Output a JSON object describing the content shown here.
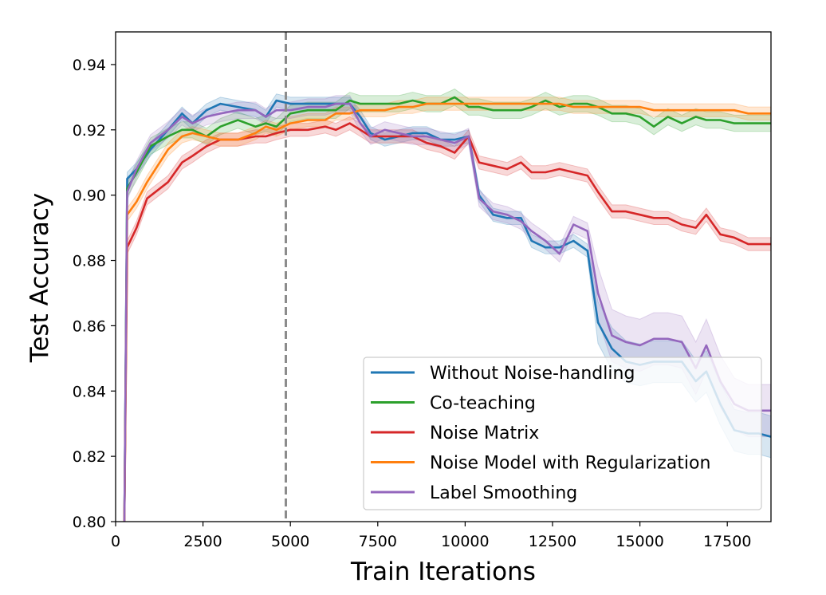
{
  "chart_data": {
    "type": "line",
    "title": "",
    "xlabel": "Train Iterations",
    "ylabel": "Test Accuracy",
    "xlim": [
      0,
      18750
    ],
    "ylim": [
      0.8,
      0.95
    ],
    "x_ticks": [
      0,
      2500,
      5000,
      7500,
      10000,
      12500,
      15000,
      17500
    ],
    "x_tick_labels": [
      "0",
      "2500",
      "5000",
      "7500",
      "10000",
      "12500",
      "15000",
      "17500"
    ],
    "y_ticks": [
      0.8,
      0.82,
      0.84,
      0.86,
      0.88,
      0.9,
      0.92,
      0.94
    ],
    "y_tick_labels": [
      "0.80",
      "0.82",
      "0.84",
      "0.86",
      "0.88",
      "0.90",
      "0.92",
      "0.94"
    ],
    "vline": {
      "x": 4870,
      "style": "dashed",
      "color": "#8c8c8c"
    },
    "grid": false,
    "legend_position": "lower-right",
    "shaded_band": true,
    "series": [
      {
        "name": "Without Noise-handling",
        "color": "#1f77b4",
        "band": 0.002,
        "points": [
          [
            250,
            0.8
          ],
          [
            330,
            0.905
          ],
          [
            600,
            0.908
          ],
          [
            1000,
            0.914
          ],
          [
            1500,
            0.92
          ],
          [
            1900,
            0.925
          ],
          [
            2200,
            0.922
          ],
          [
            2600,
            0.926
          ],
          [
            3000,
            0.928
          ],
          [
            3500,
            0.927
          ],
          [
            4000,
            0.926
          ],
          [
            4300,
            0.924
          ],
          [
            4600,
            0.929
          ],
          [
            5000,
            0.928
          ],
          [
            5500,
            0.928
          ],
          [
            6000,
            0.928
          ],
          [
            6300,
            0.928
          ],
          [
            6700,
            0.928
          ],
          [
            7000,
            0.924
          ],
          [
            7300,
            0.919
          ],
          [
            7700,
            0.917
          ],
          [
            8100,
            0.918
          ],
          [
            8500,
            0.919
          ],
          [
            8900,
            0.919
          ],
          [
            9300,
            0.917
          ],
          [
            9700,
            0.917
          ],
          [
            10100,
            0.918
          ],
          [
            10400,
            0.9
          ],
          [
            10800,
            0.894
          ],
          [
            11200,
            0.893
          ],
          [
            11600,
            0.893
          ],
          [
            11900,
            0.886
          ],
          [
            12300,
            0.884
          ],
          [
            12700,
            0.884
          ],
          [
            13100,
            0.886
          ],
          [
            13500,
            0.883
          ],
          [
            13800,
            0.861
          ],
          [
            14200,
            0.853
          ],
          [
            14600,
            0.849
          ],
          [
            15000,
            0.848
          ],
          [
            15400,
            0.849
          ],
          [
            15800,
            0.849
          ],
          [
            16200,
            0.849
          ],
          [
            16600,
            0.843
          ],
          [
            16900,
            0.846
          ],
          [
            17300,
            0.836
          ],
          [
            17700,
            0.828
          ],
          [
            18100,
            0.827
          ],
          [
            18400,
            0.827
          ],
          [
            18750,
            0.826
          ]
        ]
      },
      {
        "name": "Co-teaching",
        "color": "#2ca02c",
        "band": 0.0025,
        "points": [
          [
            250,
            0.8
          ],
          [
            330,
            0.902
          ],
          [
            600,
            0.907
          ],
          [
            1000,
            0.915
          ],
          [
            1500,
            0.918
          ],
          [
            1900,
            0.92
          ],
          [
            2200,
            0.92
          ],
          [
            2600,
            0.918
          ],
          [
            3000,
            0.921
          ],
          [
            3500,
            0.923
          ],
          [
            4000,
            0.921
          ],
          [
            4300,
            0.922
          ],
          [
            4600,
            0.921
          ],
          [
            5000,
            0.925
          ],
          [
            5500,
            0.926
          ],
          [
            6000,
            0.926
          ],
          [
            6300,
            0.926
          ],
          [
            6700,
            0.929
          ],
          [
            7000,
            0.928
          ],
          [
            7300,
            0.928
          ],
          [
            7700,
            0.928
          ],
          [
            8100,
            0.928
          ],
          [
            8500,
            0.929
          ],
          [
            8900,
            0.928
          ],
          [
            9300,
            0.928
          ],
          [
            9700,
            0.93
          ],
          [
            10100,
            0.927
          ],
          [
            10400,
            0.927
          ],
          [
            10800,
            0.926
          ],
          [
            11200,
            0.926
          ],
          [
            11600,
            0.926
          ],
          [
            11900,
            0.927
          ],
          [
            12300,
            0.929
          ],
          [
            12700,
            0.927
          ],
          [
            13100,
            0.928
          ],
          [
            13500,
            0.928
          ],
          [
            13800,
            0.927
          ],
          [
            14200,
            0.925
          ],
          [
            14600,
            0.925
          ],
          [
            15000,
            0.924
          ],
          [
            15400,
            0.921
          ],
          [
            15800,
            0.924
          ],
          [
            16200,
            0.922
          ],
          [
            16600,
            0.924
          ],
          [
            16900,
            0.923
          ],
          [
            17300,
            0.923
          ],
          [
            17700,
            0.922
          ],
          [
            18100,
            0.922
          ],
          [
            18400,
            0.922
          ],
          [
            18750,
            0.922
          ]
        ]
      },
      {
        "name": "Noise Matrix",
        "color": "#d62728",
        "band": 0.002,
        "points": [
          [
            250,
            0.8
          ],
          [
            330,
            0.884
          ],
          [
            600,
            0.89
          ],
          [
            900,
            0.899
          ],
          [
            1500,
            0.904
          ],
          [
            1900,
            0.91
          ],
          [
            2200,
            0.912
          ],
          [
            2600,
            0.915
          ],
          [
            3000,
            0.917
          ],
          [
            3500,
            0.917
          ],
          [
            4000,
            0.918
          ],
          [
            4300,
            0.918
          ],
          [
            4600,
            0.919
          ],
          [
            5000,
            0.92
          ],
          [
            5500,
            0.92
          ],
          [
            6000,
            0.921
          ],
          [
            6300,
            0.92
          ],
          [
            6700,
            0.922
          ],
          [
            7000,
            0.92
          ],
          [
            7300,
            0.918
          ],
          [
            7700,
            0.918
          ],
          [
            8100,
            0.918
          ],
          [
            8500,
            0.918
          ],
          [
            8900,
            0.916
          ],
          [
            9300,
            0.915
          ],
          [
            9700,
            0.913
          ],
          [
            10100,
            0.918
          ],
          [
            10400,
            0.91
          ],
          [
            10800,
            0.909
          ],
          [
            11200,
            0.908
          ],
          [
            11600,
            0.91
          ],
          [
            11900,
            0.907
          ],
          [
            12300,
            0.907
          ],
          [
            12700,
            0.908
          ],
          [
            13100,
            0.907
          ],
          [
            13500,
            0.906
          ],
          [
            13800,
            0.901
          ],
          [
            14200,
            0.895
          ],
          [
            14600,
            0.895
          ],
          [
            15000,
            0.894
          ],
          [
            15400,
            0.893
          ],
          [
            15800,
            0.893
          ],
          [
            16200,
            0.891
          ],
          [
            16600,
            0.89
          ],
          [
            16900,
            0.894
          ],
          [
            17300,
            0.888
          ],
          [
            17700,
            0.887
          ],
          [
            18100,
            0.885
          ],
          [
            18400,
            0.885
          ],
          [
            18750,
            0.885
          ]
        ]
      },
      {
        "name": "Noise Model with Regularization",
        "color": "#ff7f0e",
        "band": 0.002,
        "points": [
          [
            250,
            0.8
          ],
          [
            330,
            0.894
          ],
          [
            600,
            0.898
          ],
          [
            900,
            0.904
          ],
          [
            1500,
            0.914
          ],
          [
            1900,
            0.918
          ],
          [
            2200,
            0.919
          ],
          [
            2600,
            0.918
          ],
          [
            3000,
            0.917
          ],
          [
            3500,
            0.917
          ],
          [
            4000,
            0.919
          ],
          [
            4300,
            0.921
          ],
          [
            4600,
            0.92
          ],
          [
            5000,
            0.922
          ],
          [
            5500,
            0.923
          ],
          [
            6000,
            0.923
          ],
          [
            6300,
            0.925
          ],
          [
            6700,
            0.925
          ],
          [
            7000,
            0.926
          ],
          [
            7300,
            0.926
          ],
          [
            7700,
            0.926
          ],
          [
            8100,
            0.927
          ],
          [
            8500,
            0.927
          ],
          [
            8900,
            0.928
          ],
          [
            9300,
            0.928
          ],
          [
            9700,
            0.928
          ],
          [
            10100,
            0.928
          ],
          [
            10400,
            0.928
          ],
          [
            10800,
            0.928
          ],
          [
            11200,
            0.928
          ],
          [
            11600,
            0.928
          ],
          [
            11900,
            0.928
          ],
          [
            12300,
            0.928
          ],
          [
            12700,
            0.928
          ],
          [
            13100,
            0.927
          ],
          [
            13500,
            0.927
          ],
          [
            13800,
            0.927
          ],
          [
            14200,
            0.927
          ],
          [
            14600,
            0.927
          ],
          [
            15000,
            0.927
          ],
          [
            15400,
            0.926
          ],
          [
            15800,
            0.926
          ],
          [
            16200,
            0.926
          ],
          [
            16600,
            0.926
          ],
          [
            16900,
            0.926
          ],
          [
            17300,
            0.926
          ],
          [
            17700,
            0.926
          ],
          [
            18100,
            0.925
          ],
          [
            18400,
            0.925
          ],
          [
            18750,
            0.925
          ]
        ]
      },
      {
        "name": "Label Smoothing",
        "color": "#9467bd",
        "band": 0.0025,
        "points": [
          [
            250,
            0.8
          ],
          [
            330,
            0.901
          ],
          [
            600,
            0.908
          ],
          [
            1000,
            0.916
          ],
          [
            1500,
            0.92
          ],
          [
            1900,
            0.924
          ],
          [
            2200,
            0.922
          ],
          [
            2600,
            0.924
          ],
          [
            3000,
            0.925
          ],
          [
            3500,
            0.926
          ],
          [
            4000,
            0.926
          ],
          [
            4300,
            0.924
          ],
          [
            4600,
            0.926
          ],
          [
            5000,
            0.926
          ],
          [
            5500,
            0.927
          ],
          [
            6000,
            0.927
          ],
          [
            6300,
            0.928
          ],
          [
            6700,
            0.928
          ],
          [
            7000,
            0.922
          ],
          [
            7300,
            0.918
          ],
          [
            7700,
            0.92
          ],
          [
            8100,
            0.919
          ],
          [
            8500,
            0.918
          ],
          [
            8900,
            0.918
          ],
          [
            9300,
            0.917
          ],
          [
            9700,
            0.916
          ],
          [
            10100,
            0.918
          ],
          [
            10400,
            0.899
          ],
          [
            10800,
            0.895
          ],
          [
            11200,
            0.894
          ],
          [
            11600,
            0.892
          ],
          [
            11900,
            0.889
          ],
          [
            12300,
            0.886
          ],
          [
            12700,
            0.882
          ],
          [
            13100,
            0.891
          ],
          [
            13500,
            0.889
          ],
          [
            13800,
            0.87
          ],
          [
            14200,
            0.857
          ],
          [
            14600,
            0.855
          ],
          [
            15000,
            0.854
          ],
          [
            15400,
            0.856
          ],
          [
            15800,
            0.856
          ],
          [
            16200,
            0.855
          ],
          [
            16600,
            0.847
          ],
          [
            16900,
            0.854
          ],
          [
            17300,
            0.843
          ],
          [
            17700,
            0.836
          ],
          [
            18100,
            0.834
          ],
          [
            18400,
            0.834
          ],
          [
            18750,
            0.834
          ]
        ]
      }
    ]
  }
}
